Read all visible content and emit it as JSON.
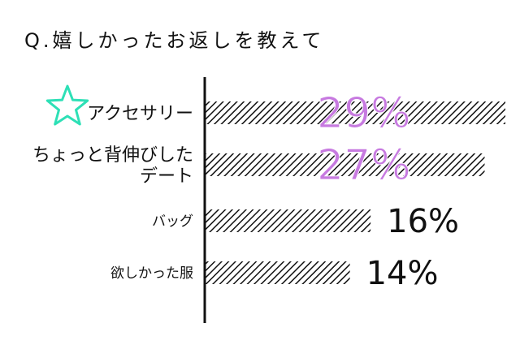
{
  "title": "Q.嬉しかったお返しを教えて",
  "chart_data": {
    "type": "bar",
    "orientation": "horizontal",
    "title": "Q.嬉しかったお返しを教えて",
    "categories": [
      "アクセサリー",
      "ちょっと背伸びした\nデート",
      "バッグ",
      "欲しかった服"
    ],
    "values": [
      29,
      27,
      16,
      14
    ],
    "value_labels": [
      "29%",
      "27%",
      "16%",
      "14%"
    ],
    "xlim": [
      0,
      29
    ],
    "highlight_color": "#c77ae0",
    "label_color": "#111111",
    "bar_pattern": "diagonal-hatch",
    "bar_color": "#111111",
    "star_color": "#2de0b6",
    "highlight_count": 2,
    "grid": false
  }
}
